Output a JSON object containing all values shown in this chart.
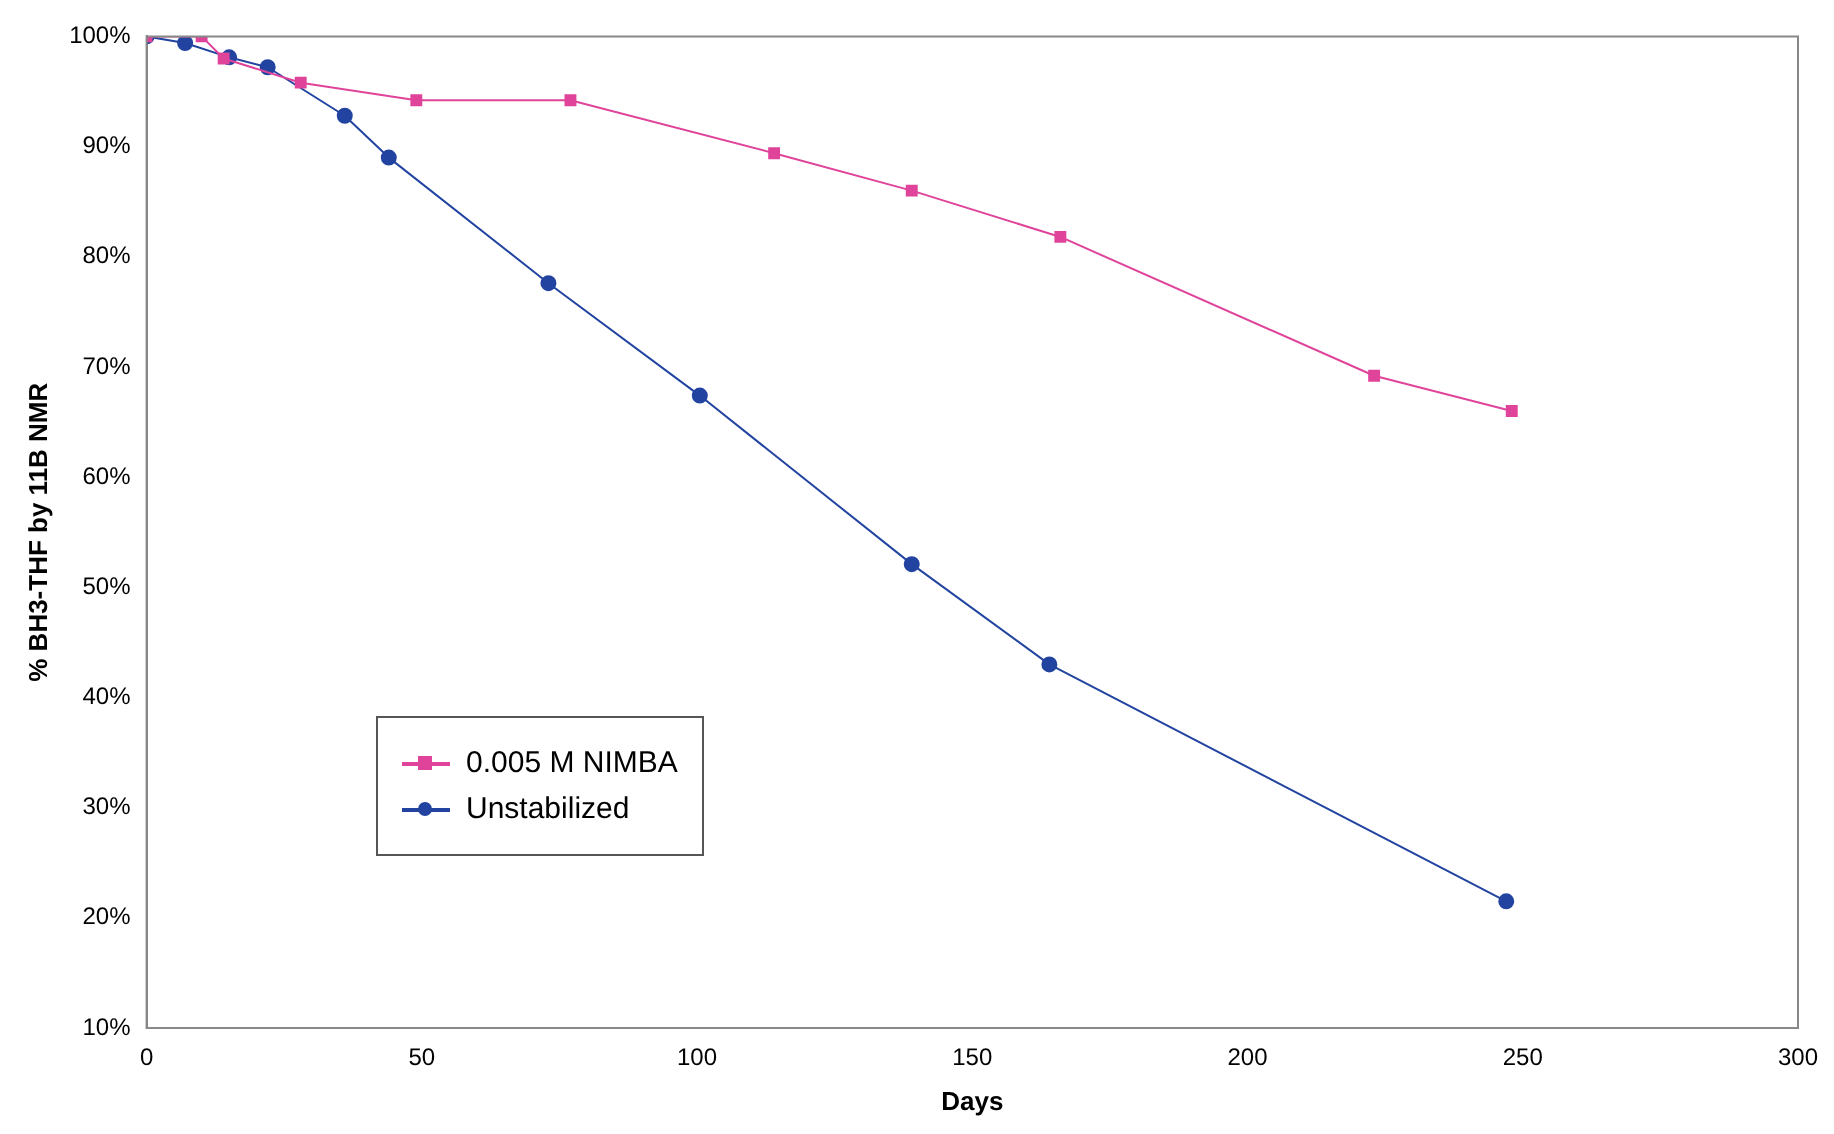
{
  "chart_data": {
    "type": "line",
    "xlabel": "Days",
    "ylabel": "% BH3-THF by 11B NMR",
    "xlim": [
      0,
      300
    ],
    "xticks": [
      0,
      50,
      100,
      150,
      200,
      250,
      300
    ],
    "ylim": [
      10,
      100
    ],
    "yticks": [
      {
        "value": 10,
        "label": "10%"
      },
      {
        "value": 20,
        "label": "20%"
      },
      {
        "value": 30,
        "label": "30%"
      },
      {
        "value": 40,
        "label": "40%"
      },
      {
        "value": 50,
        "label": "50%"
      },
      {
        "value": 60,
        "label": "60%"
      },
      {
        "value": 70,
        "label": "70%"
      },
      {
        "value": 80,
        "label": "80%"
      },
      {
        "value": 90,
        "label": "90%"
      },
      {
        "value": 100,
        "label": "100%"
      }
    ],
    "grid": false,
    "legend": "bottom left",
    "series": [
      {
        "name": "0.005 M NIMBA",
        "color": "#e0449a",
        "marker": "square",
        "x": [
          0,
          10,
          14,
          28,
          49,
          77,
          114,
          139,
          166,
          223,
          248
        ],
        "values": [
          100,
          100,
          98,
          95.8,
          94.2,
          94.2,
          89.4,
          86,
          81.8,
          69.2,
          66
        ]
      },
      {
        "name": "Unstabilized",
        "color": "#2244a0",
        "marker": "circle",
        "x": [
          0,
          7,
          15,
          22,
          36,
          44,
          73,
          100.5,
          139,
          164,
          247
        ],
        "values": [
          100,
          99.4,
          98.1,
          97.2,
          92.8,
          89,
          77.6,
          67.4,
          52.1,
          43,
          21.5
        ]
      }
    ]
  }
}
